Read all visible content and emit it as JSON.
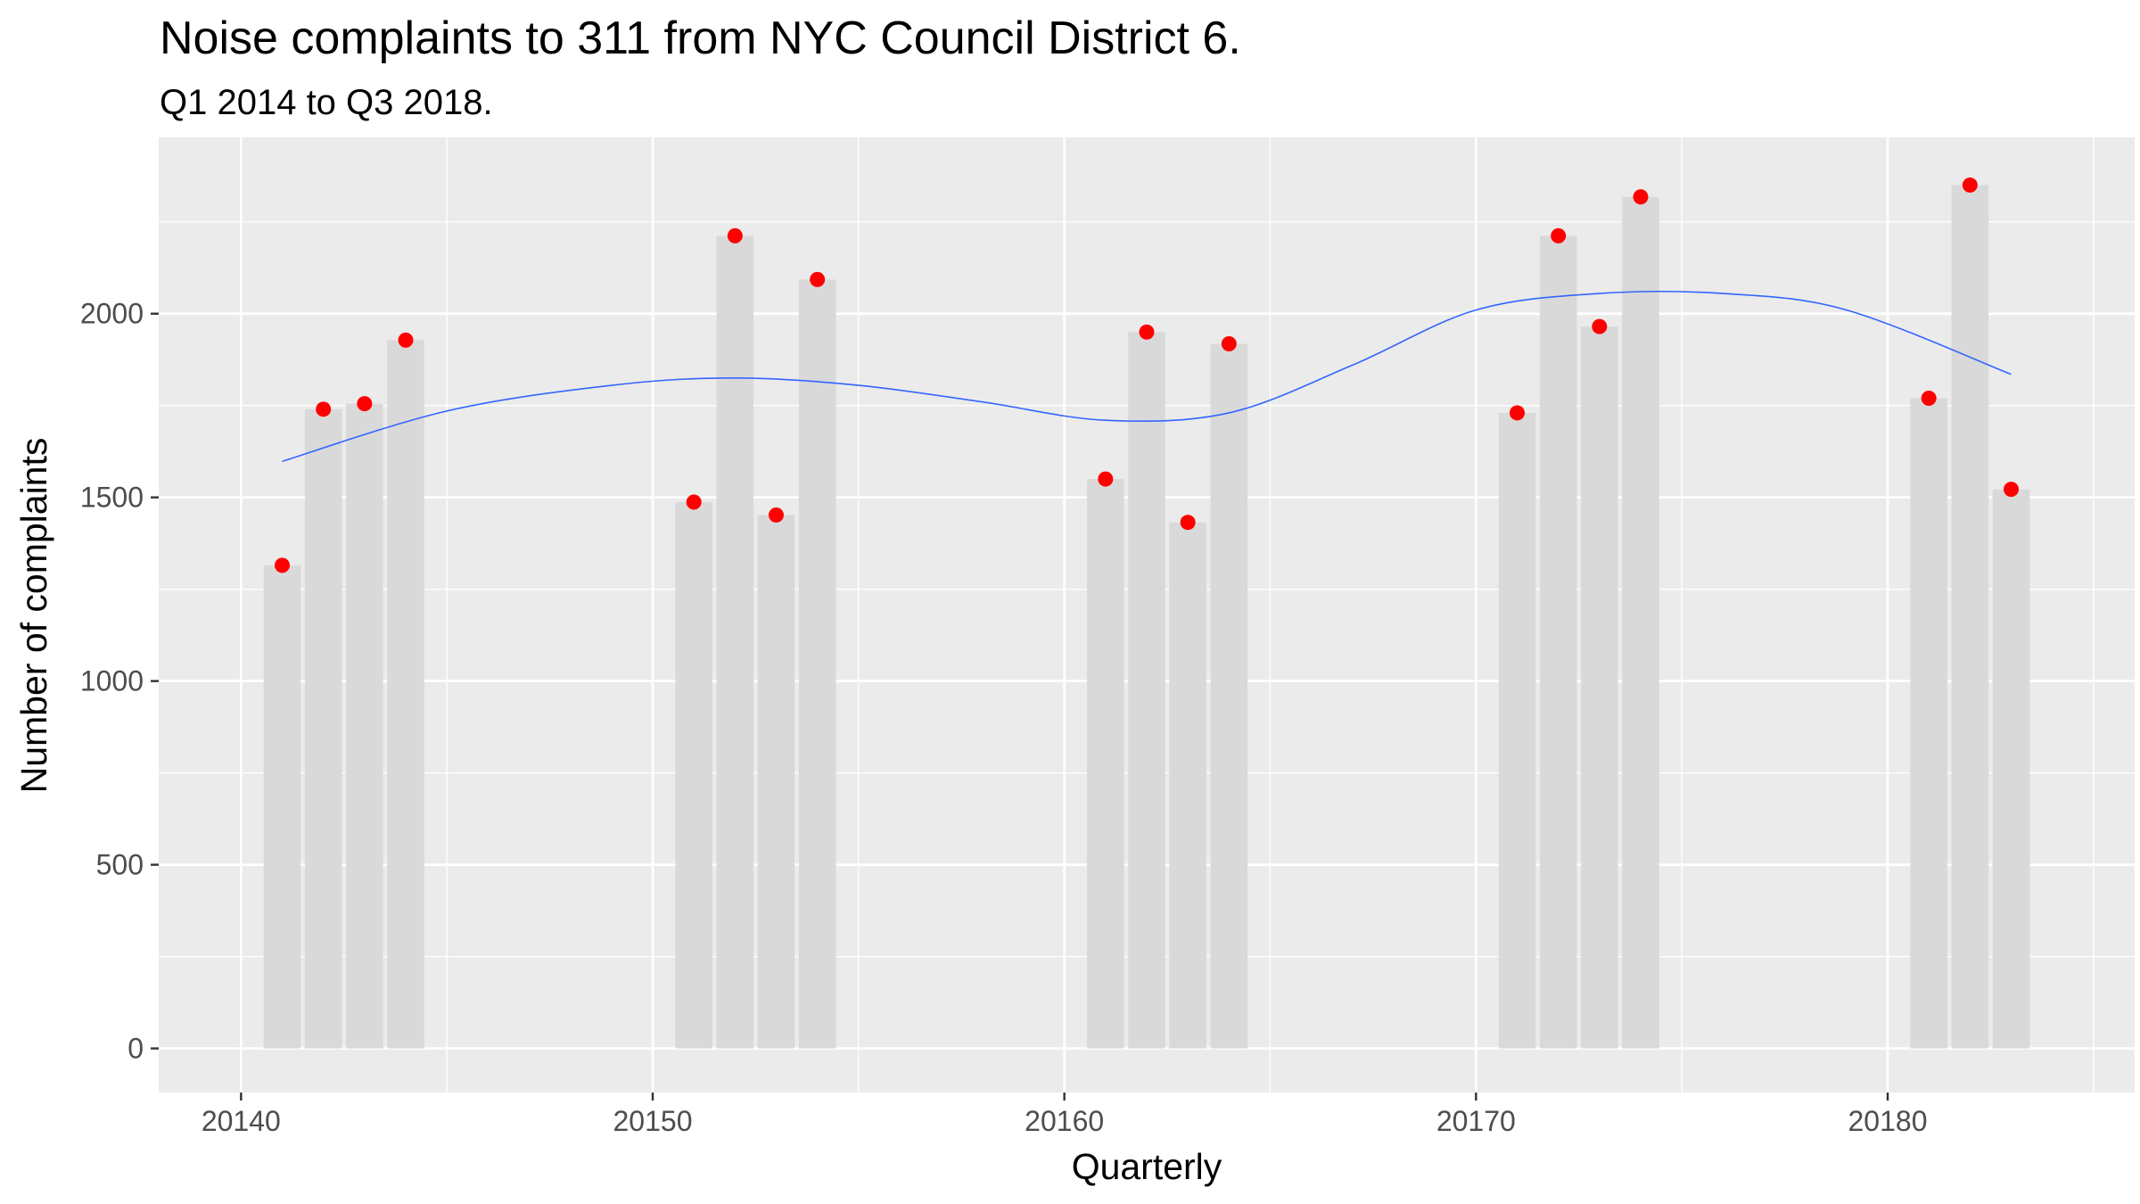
{
  "chart_data": {
    "type": "bar",
    "title": "Noise complaints to 311 from NYC Council District 6.",
    "subtitle": "Q1 2014 to Q3 2018.",
    "xlabel": "Quarterly",
    "ylabel": "Number of complaints",
    "xlim": [
      20138,
      20186
    ],
    "ylim": [
      -120,
      2480
    ],
    "x_ticks": [
      20140,
      20150,
      20160,
      20170,
      20180
    ],
    "y_ticks": [
      0,
      500,
      1000,
      1500,
      2000
    ],
    "grid": true,
    "legend": "none",
    "x": [
      20141,
      20142,
      20143,
      20144,
      20151,
      20152,
      20153,
      20154,
      20161,
      20162,
      20163,
      20164,
      20171,
      20172,
      20173,
      20174,
      20181,
      20182,
      20183
    ],
    "values": [
      1315,
      1740,
      1755,
      1928,
      1487,
      2212,
      1452,
      2093,
      1550,
      1950,
      1432,
      1918,
      1730,
      2212,
      1965,
      2318,
      1770,
      2350,
      1522
    ],
    "trend": {
      "x": [
        20141,
        20145,
        20149,
        20152,
        20155,
        20158,
        20161,
        20164,
        20167,
        20170,
        20173,
        20176,
        20179,
        20183
      ],
      "y": [
        1598,
        1735,
        1805,
        1825,
        1805,
        1760,
        1710,
        1730,
        1860,
        2010,
        2055,
        2055,
        2010,
        1835
      ]
    },
    "colors": {
      "panel": "#EBEBEB",
      "grid": "#FFFFFF",
      "bar": "#D9D9D9",
      "point": "#FF0000",
      "trend": "#3366FF"
    }
  }
}
